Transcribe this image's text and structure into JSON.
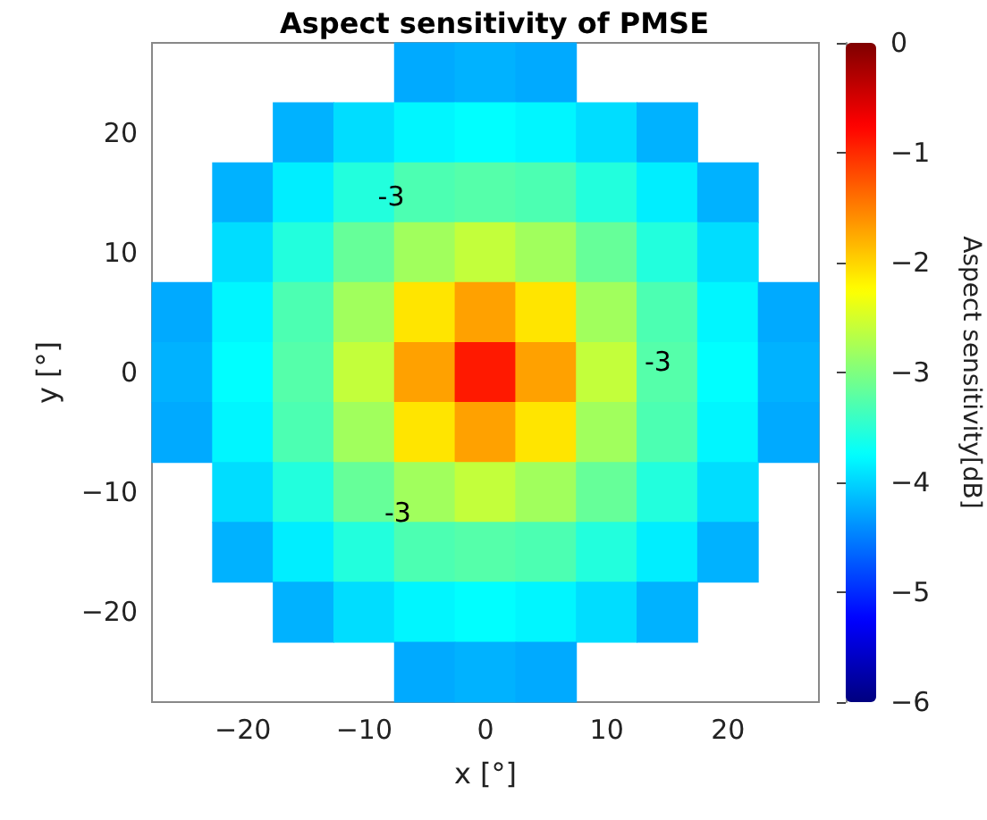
{
  "chart_data": {
    "type": "heatmap",
    "title": "Aspect sensitivity of PMSE",
    "xlabel": "x [°]",
    "ylabel": "y [°]",
    "clabel": "Aspect sensitivity[dB]",
    "categories": [
      null,
      "−20",
      null,
      "−10",
      null,
      "0",
      null,
      "10",
      null,
      "20",
      null
    ],
    "y_categories": [
      null,
      "20",
      null,
      "10",
      null,
      "0",
      null,
      "−10",
      null,
      "−20",
      null
    ],
    "cells": [
      [
        null,
        null,
        null,
        null,
        -4.25,
        -4.2,
        -4.25,
        null,
        null,
        null,
        null
      ],
      [
        null,
        null,
        -4.2,
        -3.95,
        -3.8,
        -3.75,
        -3.8,
        -3.95,
        -4.2,
        null,
        null
      ],
      [
        null,
        -4.2,
        -3.85,
        -3.55,
        -3.3,
        -3.25,
        -3.3,
        -3.55,
        -3.85,
        -4.2,
        null
      ],
      [
        null,
        -3.95,
        -3.55,
        -3.15,
        -2.8,
        -2.6,
        -2.8,
        -3.15,
        -3.55,
        -3.95,
        null
      ],
      [
        -4.25,
        -3.8,
        -3.3,
        -2.8,
        -2.1,
        -1.7,
        -2.1,
        -2.8,
        -3.3,
        -3.8,
        -4.25
      ],
      [
        -4.2,
        -3.75,
        -3.25,
        -2.6,
        -1.7,
        -0.9,
        -1.7,
        -2.6,
        -3.25,
        -3.75,
        -4.2
      ],
      [
        -4.25,
        -3.8,
        -3.3,
        -2.8,
        -2.1,
        -1.7,
        -2.1,
        -2.8,
        -3.3,
        -3.8,
        -4.25
      ],
      [
        null,
        -3.95,
        -3.55,
        -3.15,
        -2.8,
        -2.6,
        -2.8,
        -3.15,
        -3.55,
        -3.95,
        null
      ],
      [
        null,
        -4.2,
        -3.85,
        -3.55,
        -3.3,
        -3.25,
        -3.3,
        -3.55,
        -3.85,
        -4.2,
        null
      ],
      [
        null,
        null,
        -4.2,
        -3.95,
        -3.8,
        -3.75,
        -3.8,
        -3.95,
        -4.2,
        null,
        null
      ],
      [
        null,
        null,
        null,
        null,
        -4.25,
        -4.2,
        -4.25,
        null,
        null,
        null,
        null
      ]
    ],
    "clim": [
      -6,
      0
    ],
    "cticks": [
      {
        "value": -6,
        "label": "−6"
      },
      {
        "value": -5,
        "label": "−5"
      },
      {
        "value": -4,
        "label": "−4"
      },
      {
        "value": -3,
        "label": "−3"
      },
      {
        "value": -2,
        "label": "−2"
      },
      {
        "value": -1,
        "label": "−1"
      },
      0
    ],
    "annotations": [
      "-3",
      "-3",
      "-3"
    ]
  }
}
